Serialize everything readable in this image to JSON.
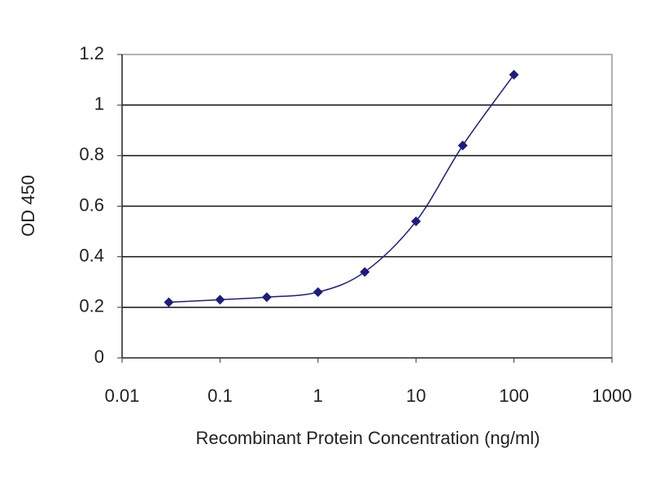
{
  "chart_data": {
    "type": "line",
    "xlabel": "Recombinant Protein Concentration (ng/ml)",
    "ylabel": "OD 450",
    "x": [
      0.03,
      0.1,
      0.3,
      1,
      3,
      10,
      30,
      100
    ],
    "series": [
      {
        "color": "#1c1c80",
        "values": [
          0.22,
          0.23,
          0.24,
          0.26,
          0.34,
          0.54,
          0.84,
          1.12
        ]
      }
    ],
    "xscale": "log",
    "xlim": [
      0.01,
      1000
    ],
    "xticks": [
      0.01,
      0.1,
      1,
      10,
      100,
      1000
    ],
    "ylim": [
      0,
      1.2
    ],
    "yticks": [
      0,
      0.2,
      0.4,
      0.6,
      0.8,
      1,
      1.2
    ],
    "grid": true
  }
}
